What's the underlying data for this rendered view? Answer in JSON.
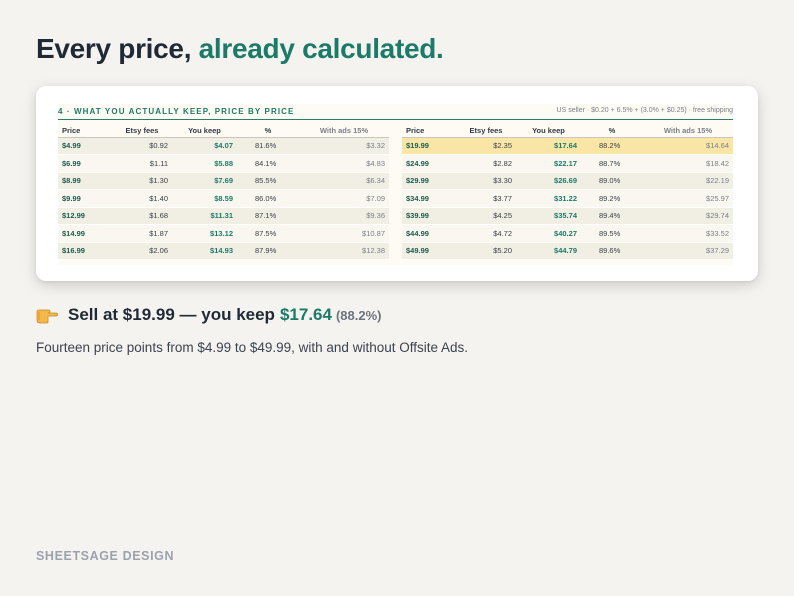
{
  "headline": {
    "prefix": "Every price,",
    "accent": "already calculated."
  },
  "sheet": {
    "title": "4  ·  WHAT YOU ACTUALLY KEEP, PRICE BY PRICE",
    "note": "US seller · $0.20 + 6.5% + (3.0% + $0.25) · free shipping",
    "columns": [
      "Price",
      "Etsy fees",
      "You keep",
      "%",
      "With ads 15%"
    ],
    "left_rows": [
      [
        "$4.99",
        "$0.92",
        "$4.07",
        "81.6%",
        "$3.32"
      ],
      [
        "$6.99",
        "$1.11",
        "$5.88",
        "84.1%",
        "$4.83"
      ],
      [
        "$8.99",
        "$1.30",
        "$7.69",
        "85.5%",
        "$6.34"
      ],
      [
        "$9.99",
        "$1.40",
        "$8.59",
        "86.0%",
        "$7.09"
      ],
      [
        "$12.99",
        "$1.68",
        "$11.31",
        "87.1%",
        "$9.36"
      ],
      [
        "$14.99",
        "$1.87",
        "$13.12",
        "87.5%",
        "$10.87"
      ],
      [
        "$16.99",
        "$2.06",
        "$14.93",
        "87.9%",
        "$12.38"
      ]
    ],
    "right_rows": [
      [
        "$19.99",
        "$2.35",
        "$17.64",
        "88.2%",
        "$14.64"
      ],
      [
        "$24.99",
        "$2.82",
        "$22.17",
        "88.7%",
        "$18.42"
      ],
      [
        "$29.99",
        "$3.30",
        "$26.69",
        "89.0%",
        "$22.19"
      ],
      [
        "$34.99",
        "$3.77",
        "$31.22",
        "89.2%",
        "$25.97"
      ],
      [
        "$39.99",
        "$4.25",
        "$35.74",
        "89.4%",
        "$29.74"
      ],
      [
        "$44.99",
        "$4.72",
        "$40.27",
        "89.5%",
        "$33.52"
      ],
      [
        "$49.99",
        "$5.20",
        "$44.79",
        "89.6%",
        "$37.29"
      ]
    ],
    "highlight_row": "$19.99"
  },
  "callout": {
    "icon": "pointing-hand-icon",
    "text": "Sell at $19.99 — you keep",
    "keep": "$17.64",
    "pct": "(88.2%)"
  },
  "subtext": "Fourteen price points from $4.99 to $49.99, with and without Offsite Ads.",
  "brand": "SHEETSAGE DESIGN",
  "colors": {
    "accent": "#1b7a68",
    "highlight": "#f9e6a6",
    "background": "#f5f3ef"
  }
}
